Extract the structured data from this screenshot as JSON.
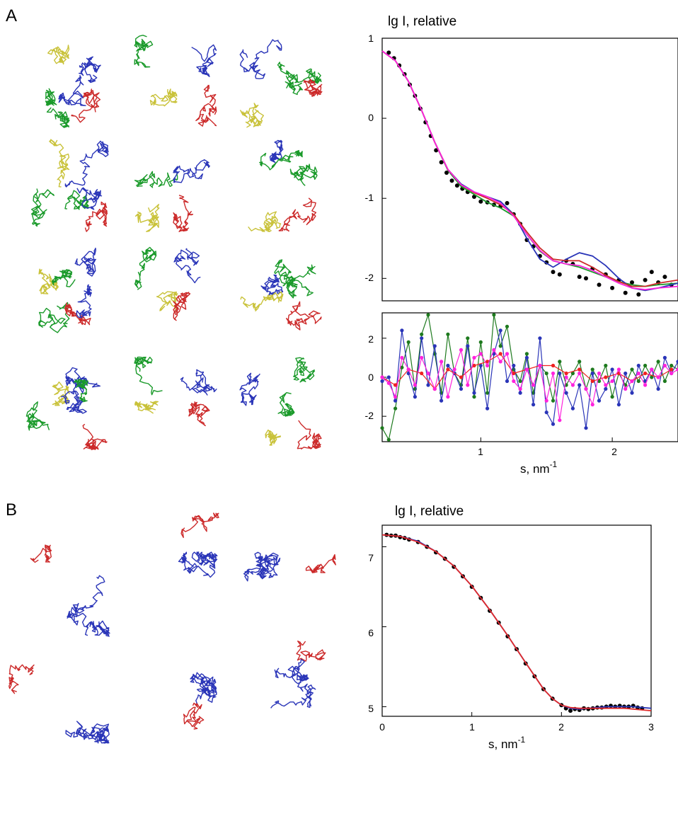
{
  "panels": {
    "A": {
      "letter": "A",
      "top_plot": {
        "ylabel": "lg I, relative",
        "y_ticks": [
          "1",
          "0",
          "-1",
          "-2"
        ]
      },
      "bottom_plot": {
        "y_ticks": [
          "2",
          "0",
          "-2"
        ],
        "x_ticks": [
          "1",
          "2"
        ],
        "xlabel_base": "s, nm",
        "xlabel_exp": "-1"
      }
    },
    "B": {
      "letter": "B",
      "plot": {
        "ylabel": "lg I, relative",
        "y_ticks": [
          "7",
          "6",
          "5"
        ],
        "x_ticks": [
          "0",
          "1",
          "2",
          "3"
        ],
        "xlabel_base": "s, nm",
        "xlabel_exp": "-1"
      }
    }
  },
  "colors": {
    "yellow": "#c9c23a",
    "green": "#1a9a2a",
    "blue": "#2a35b8",
    "red": "#cc2a2a",
    "magenta": "#ff22dd",
    "black": "#000000",
    "darkgreen": "#1e7a1e"
  },
  "chart_data": [
    {
      "type": "line",
      "panel": "A-top",
      "ylabel": "lg I, relative",
      "xlim": [
        0.25,
        2.5
      ],
      "ylim": [
        -2.28,
        1.0
      ],
      "series": [
        {
          "color": "#000000",
          "style": "points",
          "x": [
            0.3,
            0.34,
            0.38,
            0.42,
            0.46,
            0.5,
            0.54,
            0.58,
            0.62,
            0.66,
            0.7,
            0.74,
            0.78,
            0.82,
            0.86,
            0.9,
            0.95,
            1.0,
            1.05,
            1.1,
            1.15,
            1.2,
            1.25,
            1.3,
            1.35,
            1.4,
            1.45,
            1.5,
            1.55,
            1.6,
            1.65,
            1.7,
            1.75,
            1.8,
            1.85,
            1.9,
            1.95,
            2.0,
            2.05,
            2.1,
            2.15,
            2.2,
            2.25,
            2.3,
            2.35,
            2.4,
            2.45
          ],
          "y": [
            0.82,
            0.75,
            0.66,
            0.55,
            0.42,
            0.28,
            0.12,
            -0.05,
            -0.22,
            -0.4,
            -0.55,
            -0.68,
            -0.78,
            -0.84,
            -0.88,
            -0.92,
            -0.98,
            -1.04,
            -1.05,
            -1.08,
            -1.1,
            -1.06,
            -1.2,
            -1.32,
            -1.52,
            -1.6,
            -1.72,
            -1.8,
            -1.92,
            -1.95,
            -1.78,
            -1.82,
            -1.98,
            -2.0,
            -1.88,
            -2.08,
            -1.95,
            -2.12,
            -2.02,
            -2.18,
            -2.05,
            -2.2,
            -2.02,
            -1.92,
            -2.05,
            -1.98,
            -2.08
          ]
        },
        {
          "color": "#1a9a2a",
          "style": "line",
          "x": [
            0.25,
            0.35,
            0.45,
            0.55,
            0.65,
            0.75,
            0.85,
            0.95,
            1.05,
            1.15,
            1.25,
            1.35,
            1.45,
            1.55,
            1.65,
            1.75,
            1.85,
            1.95,
            2.05,
            2.15,
            2.25,
            2.35,
            2.5
          ],
          "y": [
            0.84,
            0.72,
            0.46,
            0.1,
            -0.3,
            -0.65,
            -0.85,
            -0.95,
            -1.05,
            -1.12,
            -1.22,
            -1.45,
            -1.66,
            -1.78,
            -1.82,
            -1.86,
            -1.92,
            -1.98,
            -2.04,
            -2.08,
            -2.1,
            -2.08,
            -2.06
          ]
        },
        {
          "color": "#2a35b8",
          "style": "line",
          "x": [
            0.25,
            0.35,
            0.45,
            0.55,
            0.65,
            0.75,
            0.85,
            0.95,
            1.05,
            1.15,
            1.25,
            1.35,
            1.45,
            1.55,
            1.65,
            1.75,
            1.85,
            1.95,
            2.05,
            2.15,
            2.25,
            2.35,
            2.5
          ],
          "y": [
            0.84,
            0.72,
            0.46,
            0.1,
            -0.3,
            -0.64,
            -0.82,
            -0.92,
            -0.98,
            -1.04,
            -1.2,
            -1.5,
            -1.76,
            -1.86,
            -1.76,
            -1.68,
            -1.72,
            -1.84,
            -2.0,
            -2.12,
            -2.15,
            -2.12,
            -2.06
          ]
        },
        {
          "color": "#cc2a2a",
          "style": "line",
          "x": [
            0.25,
            0.35,
            0.45,
            0.55,
            0.65,
            0.75,
            0.85,
            0.95,
            1.05,
            1.15,
            1.25,
            1.35,
            1.45,
            1.55,
            1.65,
            1.75,
            1.85,
            1.95,
            2.05,
            2.15,
            2.25,
            2.35,
            2.5
          ],
          "y": [
            0.84,
            0.72,
            0.46,
            0.1,
            -0.3,
            -0.64,
            -0.83,
            -0.93,
            -1.0,
            -1.08,
            -1.2,
            -1.42,
            -1.62,
            -1.76,
            -1.78,
            -1.78,
            -1.86,
            -1.96,
            -2.04,
            -2.1,
            -2.1,
            -2.06,
            -2.02
          ]
        },
        {
          "color": "#ff22dd",
          "style": "line",
          "x": [
            0.25,
            0.35,
            0.45,
            0.55,
            0.65,
            0.75,
            0.85,
            0.95,
            1.05,
            1.15,
            1.25,
            1.35,
            1.45,
            1.55,
            1.65,
            1.75,
            1.85,
            1.95,
            2.05,
            2.15,
            2.25,
            2.35,
            2.5
          ],
          "y": [
            0.84,
            0.72,
            0.46,
            0.1,
            -0.3,
            -0.64,
            -0.83,
            -0.92,
            -0.98,
            -1.06,
            -1.22,
            -1.45,
            -1.65,
            -1.78,
            -1.82,
            -1.84,
            -1.9,
            -1.98,
            -2.06,
            -2.12,
            -2.14,
            -2.12,
            -2.1
          ]
        }
      ]
    },
    {
      "type": "line",
      "panel": "A-bottom",
      "xlim": [
        0.25,
        2.5
      ],
      "ylim": [
        -3.3,
        3.3
      ],
      "series": [
        {
          "color": "#1e7a1e",
          "style": "points-line",
          "x": [
            0.25,
            0.3,
            0.35,
            0.4,
            0.45,
            0.5,
            0.55,
            0.6,
            0.65,
            0.7,
            0.75,
            0.8,
            0.85,
            0.9,
            0.95,
            1.0,
            1.05,
            1.1,
            1.15,
            1.2,
            1.25,
            1.3,
            1.35,
            1.4,
            1.45,
            1.5,
            1.55,
            1.6,
            1.65,
            1.7,
            1.75,
            1.8,
            1.85,
            1.9,
            1.95,
            2.0,
            2.05,
            2.1,
            2.15,
            2.2,
            2.25,
            2.3,
            2.35,
            2.4,
            2.45,
            2.5
          ],
          "y": [
            -2.6,
            -3.2,
            -1.6,
            0.5,
            1.8,
            -0.6,
            2.2,
            3.2,
            1.2,
            -0.8,
            2.2,
            0.2,
            -0.4,
            2.0,
            -1.0,
            1.8,
            -0.8,
            3.2,
            1.6,
            2.6,
            0.4,
            -0.2,
            1.2,
            -0.8,
            0.6,
            0.2,
            -1.2,
            0.8,
            -0.4,
            0.2,
            0.8,
            -0.6,
            0.4,
            -0.2,
            0.6,
            -1.0,
            0.2,
            -0.4,
            0.4,
            -0.2,
            0.6,
            0.0,
            0.8,
            -0.2,
            0.6,
            0.4
          ]
        },
        {
          "color": "#2a35b8",
          "style": "points-line",
          "x": [
            0.25,
            0.3,
            0.35,
            0.4,
            0.45,
            0.5,
            0.55,
            0.6,
            0.65,
            0.7,
            0.75,
            0.8,
            0.85,
            0.9,
            0.95,
            1.0,
            1.05,
            1.1,
            1.15,
            1.2,
            1.25,
            1.3,
            1.35,
            1.4,
            1.45,
            1.5,
            1.55,
            1.6,
            1.65,
            1.7,
            1.75,
            1.8,
            1.85,
            1.9,
            1.95,
            2.0,
            2.05,
            2.1,
            2.15,
            2.2,
            2.25,
            2.3,
            2.35,
            2.4,
            2.45,
            2.5
          ],
          "y": [
            -0.2,
            0.0,
            -1.2,
            2.4,
            0.2,
            -1.0,
            2.0,
            -0.4,
            1.6,
            -1.2,
            0.6,
            0.2,
            -0.6,
            1.6,
            -0.8,
            0.6,
            -1.6,
            1.2,
            2.4,
            -0.2,
            0.6,
            -0.8,
            1.0,
            -1.4,
            2.0,
            -1.8,
            -2.4,
            0.2,
            -0.8,
            -1.6,
            -0.4,
            -2.6,
            0.2,
            -1.2,
            -0.6,
            0.4,
            -1.4,
            0.2,
            -0.8,
            0.6,
            -0.2,
            0.4,
            -0.6,
            1.0,
            0.2,
            0.8
          ]
        },
        {
          "color": "#ee2222",
          "style": "points-line",
          "x": [
            0.25,
            0.35,
            0.45,
            0.55,
            0.65,
            0.75,
            0.85,
            0.95,
            1.05,
            1.15,
            1.25,
            1.35,
            1.45,
            1.55,
            1.65,
            1.75,
            1.85,
            1.95,
            2.05,
            2.15,
            2.25,
            2.35,
            2.45
          ],
          "y": [
            0.0,
            -0.4,
            0.4,
            0.2,
            -0.6,
            0.4,
            0.0,
            0.6,
            0.8,
            1.2,
            0.2,
            0.4,
            0.6,
            0.6,
            0.2,
            0.4,
            -0.2,
            0.0,
            0.2,
            -0.2,
            0.2,
            0.0,
            0.4
          ]
        },
        {
          "color": "#ff22dd",
          "style": "points-line",
          "x": [
            0.25,
            0.3,
            0.35,
            0.4,
            0.45,
            0.5,
            0.55,
            0.6,
            0.65,
            0.7,
            0.75,
            0.8,
            0.85,
            0.9,
            0.95,
            1.0,
            1.05,
            1.1,
            1.15,
            1.2,
            1.25,
            1.3,
            1.35,
            1.4,
            1.45,
            1.5,
            1.55,
            1.6,
            1.65,
            1.7,
            1.75,
            1.8,
            1.85,
            1.9,
            1.95,
            2.0,
            2.05,
            2.1,
            2.15,
            2.2,
            2.25,
            2.3,
            2.35,
            2.4,
            2.45,
            2.5
          ],
          "y": [
            0.0,
            -0.3,
            -1.0,
            1.0,
            0.4,
            -0.4,
            1.0,
            0.2,
            -0.6,
            0.8,
            -1.0,
            0.4,
            1.4,
            -0.4,
            1.0,
            1.2,
            0.6,
            1.4,
            0.8,
            1.2,
            -0.2,
            -0.6,
            0.4,
            -0.4,
            0.6,
            -1.2,
            0.2,
            -2.2,
            0.0,
            -0.4,
            0.2,
            -0.6,
            -1.4,
            0.2,
            -0.4,
            -0.2,
            0.4,
            -0.6,
            -0.2,
            0.2,
            -0.4,
            0.4,
            0.0,
            0.6,
            0.2,
            0.4
          ]
        }
      ]
    },
    {
      "type": "line",
      "panel": "B",
      "ylabel": "lg I, relative",
      "xlim": [
        0,
        3
      ],
      "ylim": [
        4.88,
        7.27
      ],
      "series": [
        {
          "color": "#000000",
          "style": "points",
          "x": [
            0.05,
            0.1,
            0.15,
            0.2,
            0.25,
            0.3,
            0.4,
            0.5,
            0.6,
            0.7,
            0.8,
            0.9,
            1.0,
            1.1,
            1.2,
            1.3,
            1.4,
            1.5,
            1.6,
            1.7,
            1.8,
            1.9,
            2.0,
            2.05,
            2.1,
            2.15,
            2.2,
            2.25,
            2.3,
            2.35,
            2.4,
            2.45,
            2.5,
            2.55,
            2.6,
            2.65,
            2.7,
            2.75,
            2.8,
            2.85,
            2.9
          ],
          "y": [
            7.15,
            7.14,
            7.14,
            7.12,
            7.11,
            7.09,
            7.06,
            7.0,
            6.93,
            6.85,
            6.75,
            6.63,
            6.5,
            6.36,
            6.2,
            6.05,
            5.88,
            5.72,
            5.54,
            5.38,
            5.22,
            5.1,
            5.02,
            4.98,
            4.95,
            4.97,
            4.96,
            4.98,
            4.97,
            4.98,
            4.99,
            4.99,
            5.0,
            5.01,
            5.0,
            5.01,
            5.0,
            5.0,
            5.01,
            4.99,
            4.98
          ]
        },
        {
          "color": "#2a35b8",
          "style": "line",
          "x": [
            0,
            0.2,
            0.4,
            0.6,
            0.8,
            1.0,
            1.2,
            1.4,
            1.6,
            1.8,
            1.9,
            2.0,
            2.1,
            2.2,
            2.3,
            2.4,
            2.5,
            2.6,
            2.7,
            2.8,
            2.9,
            3.0
          ],
          "y": [
            7.15,
            7.13,
            7.07,
            6.94,
            6.76,
            6.51,
            6.21,
            5.89,
            5.55,
            5.22,
            5.1,
            5.02,
            4.98,
            4.97,
            4.98,
            4.99,
            5.0,
            5.0,
            5.0,
            5.0,
            4.99,
            4.98
          ]
        },
        {
          "color": "#e02a2a",
          "style": "line",
          "x": [
            0,
            0.2,
            0.4,
            0.6,
            0.8,
            1.0,
            1.2,
            1.4,
            1.6,
            1.8,
            1.9,
            2.0,
            2.1,
            2.2,
            2.3,
            2.4,
            2.5,
            2.6,
            2.7,
            2.8,
            2.9,
            3.0
          ],
          "y": [
            7.15,
            7.13,
            7.06,
            6.94,
            6.76,
            6.51,
            6.21,
            5.89,
            5.55,
            5.22,
            5.1,
            5.02,
            4.99,
            4.98,
            4.98,
            4.98,
            4.98,
            4.98,
            4.98,
            4.97,
            4.96,
            4.95
          ]
        }
      ]
    }
  ]
}
